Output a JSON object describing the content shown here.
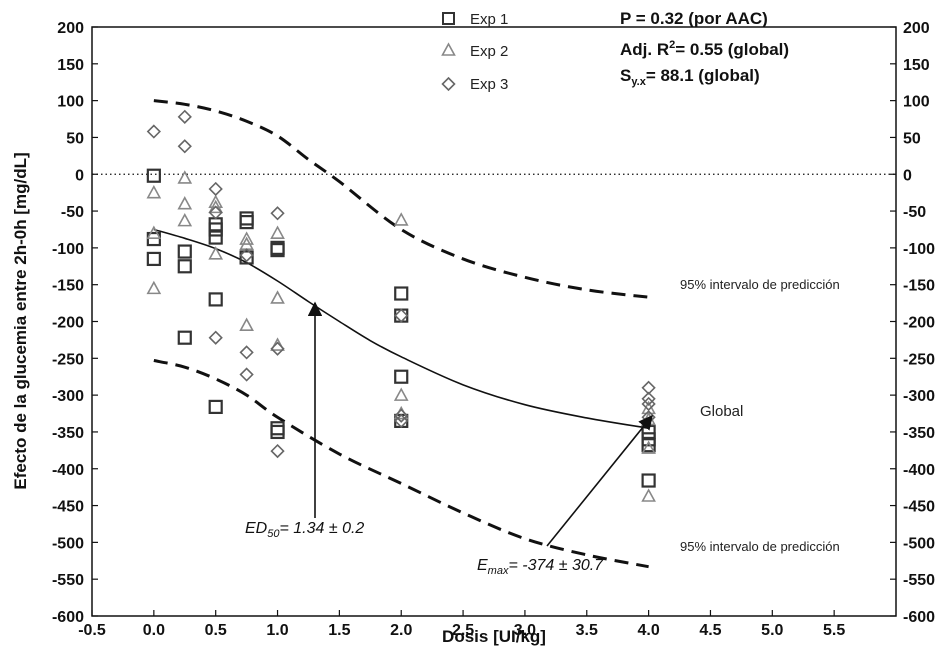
{
  "chart_data": {
    "type": "scatter",
    "xlabel": "Dosis [UI/kg]",
    "ylabel": "Efecto de la glucemia entre 2h-0h [mg/dL]",
    "xlim": [
      -0.5,
      6.0
    ],
    "ylim": [
      -600,
      200
    ],
    "x_ticks": [
      -0.5,
      0.0,
      0.5,
      1.0,
      1.5,
      2.0,
      2.5,
      3.0,
      3.5,
      4.0,
      4.5,
      5.0,
      5.5
    ],
    "x_tick_labels": [
      "-0.5",
      "0.0",
      "0.5",
      "1.0",
      "1.5",
      "2.0",
      "2.5",
      "3.0",
      "3.5",
      "4.0",
      "4.5",
      "5.0",
      "5.5"
    ],
    "y_ticks": [
      200,
      150,
      100,
      50,
      0,
      -50,
      -100,
      -150,
      -200,
      -250,
      -300,
      -350,
      -400,
      -450,
      -500,
      -550,
      -600
    ],
    "y_tick_labels": [
      "200",
      "150",
      "100",
      "50",
      "0",
      "-50",
      "-100",
      "-150",
      "-200",
      "-250",
      "-300",
      "-350",
      "-400",
      "-450",
      "-500",
      "-550",
      "-600"
    ],
    "zero_line": true,
    "grid": false,
    "legend_position": "top-center",
    "series": [
      {
        "name": "Exp 1",
        "marker": "square",
        "color": "#333333",
        "points": [
          [
            0,
            -2
          ],
          [
            0,
            -88
          ],
          [
            0,
            -115
          ],
          [
            0.25,
            -105
          ],
          [
            0.25,
            -125
          ],
          [
            0.25,
            -222
          ],
          [
            0.5,
            -68
          ],
          [
            0.5,
            -75
          ],
          [
            0.5,
            -86
          ],
          [
            0.5,
            -170
          ],
          [
            0.5,
            -316
          ],
          [
            0.75,
            -60
          ],
          [
            0.75,
            -65
          ],
          [
            0.75,
            -113
          ],
          [
            1.0,
            -100
          ],
          [
            1.0,
            -103
          ],
          [
            1.0,
            -345
          ],
          [
            1.0,
            -350
          ],
          [
            2.0,
            -162
          ],
          [
            2.0,
            -192
          ],
          [
            2.0,
            -275
          ],
          [
            2.0,
            -335
          ],
          [
            4.0,
            -350
          ],
          [
            4.0,
            -360
          ],
          [
            4.0,
            -368
          ],
          [
            4.0,
            -416
          ]
        ]
      },
      {
        "name": "Exp 2",
        "marker": "triangle",
        "color": "#888888",
        "points": [
          [
            0,
            -25
          ],
          [
            0,
            -80
          ],
          [
            0,
            -155
          ],
          [
            0.25,
            -5
          ],
          [
            0.25,
            -40
          ],
          [
            0.25,
            -63
          ],
          [
            0.5,
            -38
          ],
          [
            0.5,
            -45
          ],
          [
            0.5,
            -108
          ],
          [
            0.75,
            -88
          ],
          [
            0.75,
            -95
          ],
          [
            0.75,
            -205
          ],
          [
            1.0,
            -80
          ],
          [
            1.0,
            -168
          ],
          [
            1.0,
            -232
          ],
          [
            2.0,
            -62
          ],
          [
            2.0,
            -300
          ],
          [
            2.0,
            -325
          ],
          [
            4.0,
            -318
          ],
          [
            4.0,
            -333
          ],
          [
            4.0,
            -372
          ],
          [
            4.0,
            -437
          ]
        ]
      },
      {
        "name": "Exp 3",
        "marker": "diamond",
        "color": "#666666",
        "points": [
          [
            0,
            58
          ],
          [
            0.25,
            78
          ],
          [
            0.25,
            38
          ],
          [
            0.5,
            -20
          ],
          [
            0.5,
            -52
          ],
          [
            0.5,
            -222
          ],
          [
            0.75,
            -110
          ],
          [
            0.75,
            -242
          ],
          [
            0.75,
            -272
          ],
          [
            1.0,
            -53
          ],
          [
            1.0,
            -237
          ],
          [
            1.0,
            -376
          ],
          [
            2.0,
            -192
          ],
          [
            2.0,
            -328
          ],
          [
            2.0,
            -335
          ],
          [
            4.0,
            -290
          ],
          [
            4.0,
            -305
          ],
          [
            4.0,
            -312
          ],
          [
            4.0,
            -330
          ]
        ]
      }
    ],
    "fit_line": {
      "name": "Global",
      "points": [
        [
          0,
          -75
        ],
        [
          0.25,
          -87
        ],
        [
          0.5,
          -101
        ],
        [
          0.75,
          -120
        ],
        [
          1.0,
          -145
        ],
        [
          1.25,
          -173
        ],
        [
          1.5,
          -200
        ],
        [
          1.75,
          -226
        ],
        [
          2.0,
          -248
        ],
        [
          2.5,
          -286
        ],
        [
          3.0,
          -313
        ],
        [
          3.5,
          -331
        ],
        [
          4.0,
          -345
        ]
      ]
    },
    "upper_band": {
      "label": "95% intervalo de predicción",
      "points": [
        [
          0,
          100
        ],
        [
          0.25,
          95
        ],
        [
          0.5,
          86
        ],
        [
          0.75,
          72
        ],
        [
          1.0,
          52
        ],
        [
          1.25,
          20
        ],
        [
          1.5,
          -10
        ],
        [
          2.0,
          -75
        ],
        [
          2.5,
          -115
        ],
        [
          3.0,
          -140
        ],
        [
          3.5,
          -157
        ],
        [
          4.0,
          -167
        ]
      ]
    },
    "lower_band": {
      "label": "95% intervalo de predicción",
      "points": [
        [
          0,
          -253
        ],
        [
          0.25,
          -262
        ],
        [
          0.5,
          -278
        ],
        [
          0.75,
          -300
        ],
        [
          1.0,
          -330
        ],
        [
          1.5,
          -380
        ],
        [
          2.0,
          -420
        ],
        [
          2.5,
          -460
        ],
        [
          3.0,
          -495
        ],
        [
          3.5,
          -517
        ],
        [
          4.0,
          -533
        ]
      ]
    },
    "annotations": {
      "p_value": "P = 0.32 (por AAC)",
      "adj_r2_prefix": "Adj. R",
      "adj_r2_sup": "2",
      "adj_r2_suffix": "= 0.55 (global)",
      "syx_prefix": "S",
      "syx_sub": "y.x",
      "syx_suffix": "= 88.1 (global)",
      "ed50_main": "ED",
      "ed50_sub": "50",
      "ed50_value": "= 1.34 ± 0.2",
      "emax_main": "E",
      "emax_sub": "max",
      "emax_value": "= -374 ± 30.7",
      "global_label": "Global"
    }
  }
}
